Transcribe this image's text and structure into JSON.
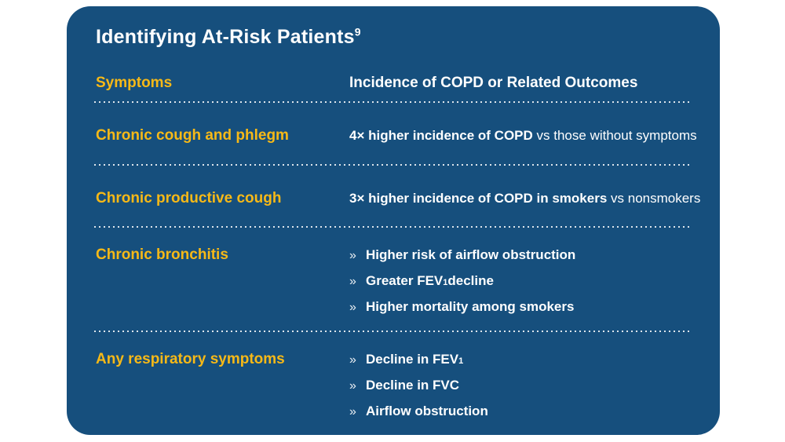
{
  "card": {
    "title": {
      "text": "Identifying At-Risk Patients",
      "superscript": "9"
    },
    "colors": {
      "card_background": "#164F7D",
      "accent_yellow": "#F7B917",
      "text_white": "#FFFFFF",
      "dotted_line": "#EEF2F6"
    },
    "bullet_marker": "»",
    "header": {
      "symptoms_label": "Symptoms",
      "outcomes_label": "Incidence of COPD or Related Outcomes"
    },
    "rows": [
      {
        "symptom": "Chronic cough and phlegm",
        "value_bold": "4× higher incidence of COPD",
        "value_rest": " vs those without symptoms"
      },
      {
        "symptom": "Chronic productive cough",
        "value_bold": "3× higher incidence of COPD in smokers",
        "value_rest": " vs nonsmokers"
      },
      {
        "symptom": "Chronic bronchitis",
        "bullets": [
          {
            "pre": "Higher risk of airflow obstruction",
            "sub": "",
            "post": ""
          },
          {
            "pre": "Greater FEV",
            "sub": "1",
            "post": " decline"
          },
          {
            "pre": "Higher mortality among smokers",
            "sub": "",
            "post": ""
          }
        ]
      },
      {
        "symptom": "Any respiratory symptoms",
        "bullets": [
          {
            "pre": "Decline in FEV",
            "sub": "1",
            "post": ""
          },
          {
            "pre": "Decline in FVC",
            "sub": "",
            "post": ""
          },
          {
            "pre": "Airflow obstruction",
            "sub": "",
            "post": ""
          }
        ]
      }
    ]
  }
}
